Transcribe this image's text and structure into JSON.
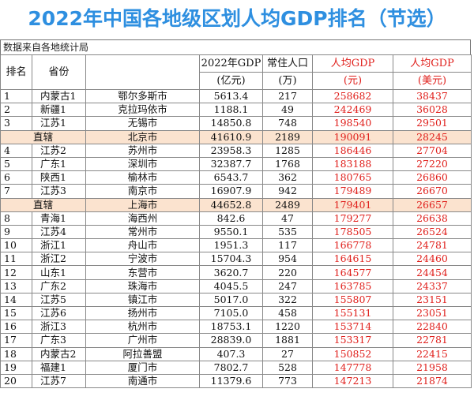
{
  "title": "2022年中国各地级区划人均GDP排名（节选）",
  "source": "数据来自各地统计局",
  "headers": {
    "rank": "排名",
    "province": "省份",
    "gdp_line1": "2022年GDP",
    "gdp_line2": "(亿元)",
    "pop_line1": "常住人口",
    "pop_line2": "(万)",
    "cny_line1": "人均GDP",
    "cny_line2": "(元)",
    "usd_line1": "人均GDP",
    "usd_line2": "(美元)"
  },
  "rows": [
    {
      "rank": "1",
      "province": "内蒙古1",
      "city": "鄂尔多斯市",
      "gdp": "5613.4",
      "pop": "217",
      "cny": "258682",
      "usd": "38437"
    },
    {
      "rank": "2",
      "province": "新疆1",
      "city": "克拉玛依市",
      "gdp": "1188.1",
      "pop": "49",
      "cny": "242469",
      "usd": "36028"
    },
    {
      "rank": "3",
      "province": "江苏1",
      "city": "无锡市",
      "gdp": "14850.8",
      "pop": "748",
      "cny": "198540",
      "usd": "29501"
    },
    {
      "direct": true,
      "rank": "直辖",
      "province": "",
      "city": "北京市",
      "gdp": "41610.9",
      "pop": "2189",
      "cny": "190091",
      "usd": "28245"
    },
    {
      "rank": "4",
      "province": "江苏2",
      "city": "苏州市",
      "gdp": "23958.3",
      "pop": "1285",
      "cny": "186446",
      "usd": "27704"
    },
    {
      "rank": "5",
      "province": "广东1",
      "city": "深圳市",
      "gdp": "32387.7",
      "pop": "1768",
      "cny": "183188",
      "usd": "27220"
    },
    {
      "rank": "6",
      "province": "陕西1",
      "city": "榆林市",
      "gdp": "6543.7",
      "pop": "362",
      "cny": "180765",
      "usd": "26860"
    },
    {
      "rank": "7",
      "province": "江苏3",
      "city": "南京市",
      "gdp": "16907.9",
      "pop": "942",
      "cny": "179489",
      "usd": "26670"
    },
    {
      "direct": true,
      "rank": "直辖",
      "province": "",
      "city": "上海市",
      "gdp": "44652.8",
      "pop": "2489",
      "cny": "179401",
      "usd": "26657"
    },
    {
      "rank": "8",
      "province": "青海1",
      "city": "海西州",
      "gdp": "842.6",
      "pop": "47",
      "cny": "179277",
      "usd": "26638"
    },
    {
      "rank": "9",
      "province": "江苏4",
      "city": "常州市",
      "gdp": "9550.1",
      "pop": "535",
      "cny": "178505",
      "usd": "26524"
    },
    {
      "rank": "10",
      "province": "浙江1",
      "city": "舟山市",
      "gdp": "1951.3",
      "pop": "117",
      "cny": "166778",
      "usd": "24781"
    },
    {
      "rank": "11",
      "province": "浙江2",
      "city": "宁波市",
      "gdp": "15704.3",
      "pop": "954",
      "cny": "164615",
      "usd": "24460"
    },
    {
      "rank": "12",
      "province": "山东1",
      "city": "东营市",
      "gdp": "3620.7",
      "pop": "220",
      "cny": "164577",
      "usd": "24454"
    },
    {
      "rank": "13",
      "province": "广东2",
      "city": "珠海市",
      "gdp": "4045.5",
      "pop": "247",
      "cny": "163785",
      "usd": "24337"
    },
    {
      "rank": "14",
      "province": "江苏5",
      "city": "镇江市",
      "gdp": "5017.0",
      "pop": "322",
      "cny": "155807",
      "usd": "23151"
    },
    {
      "rank": "15",
      "province": "江苏6",
      "city": "扬州市",
      "gdp": "7105.0",
      "pop": "458",
      "cny": "155131",
      "usd": "23051"
    },
    {
      "rank": "16",
      "province": "浙江3",
      "city": "杭州市",
      "gdp": "18753.1",
      "pop": "1220",
      "cny": "153714",
      "usd": "22840"
    },
    {
      "rank": "17",
      "province": "广东3",
      "city": "广州市",
      "gdp": "28839.0",
      "pop": "1881",
      "cny": "153317",
      "usd": "22781"
    },
    {
      "rank": "18",
      "province": "内蒙古2",
      "city": "阿拉善盟",
      "gdp": "407.3",
      "pop": "27",
      "cny": "150852",
      "usd": "22415"
    },
    {
      "rank": "19",
      "province": "福建1",
      "city": "厦门市",
      "gdp": "7802.7",
      "pop": "528",
      "cny": "147778",
      "usd": "21958"
    },
    {
      "rank": "20",
      "province": "江苏7",
      "city": "南通市",
      "gdp": "11379.6",
      "pop": "773",
      "cny": "147213",
      "usd": "21874"
    }
  ]
}
